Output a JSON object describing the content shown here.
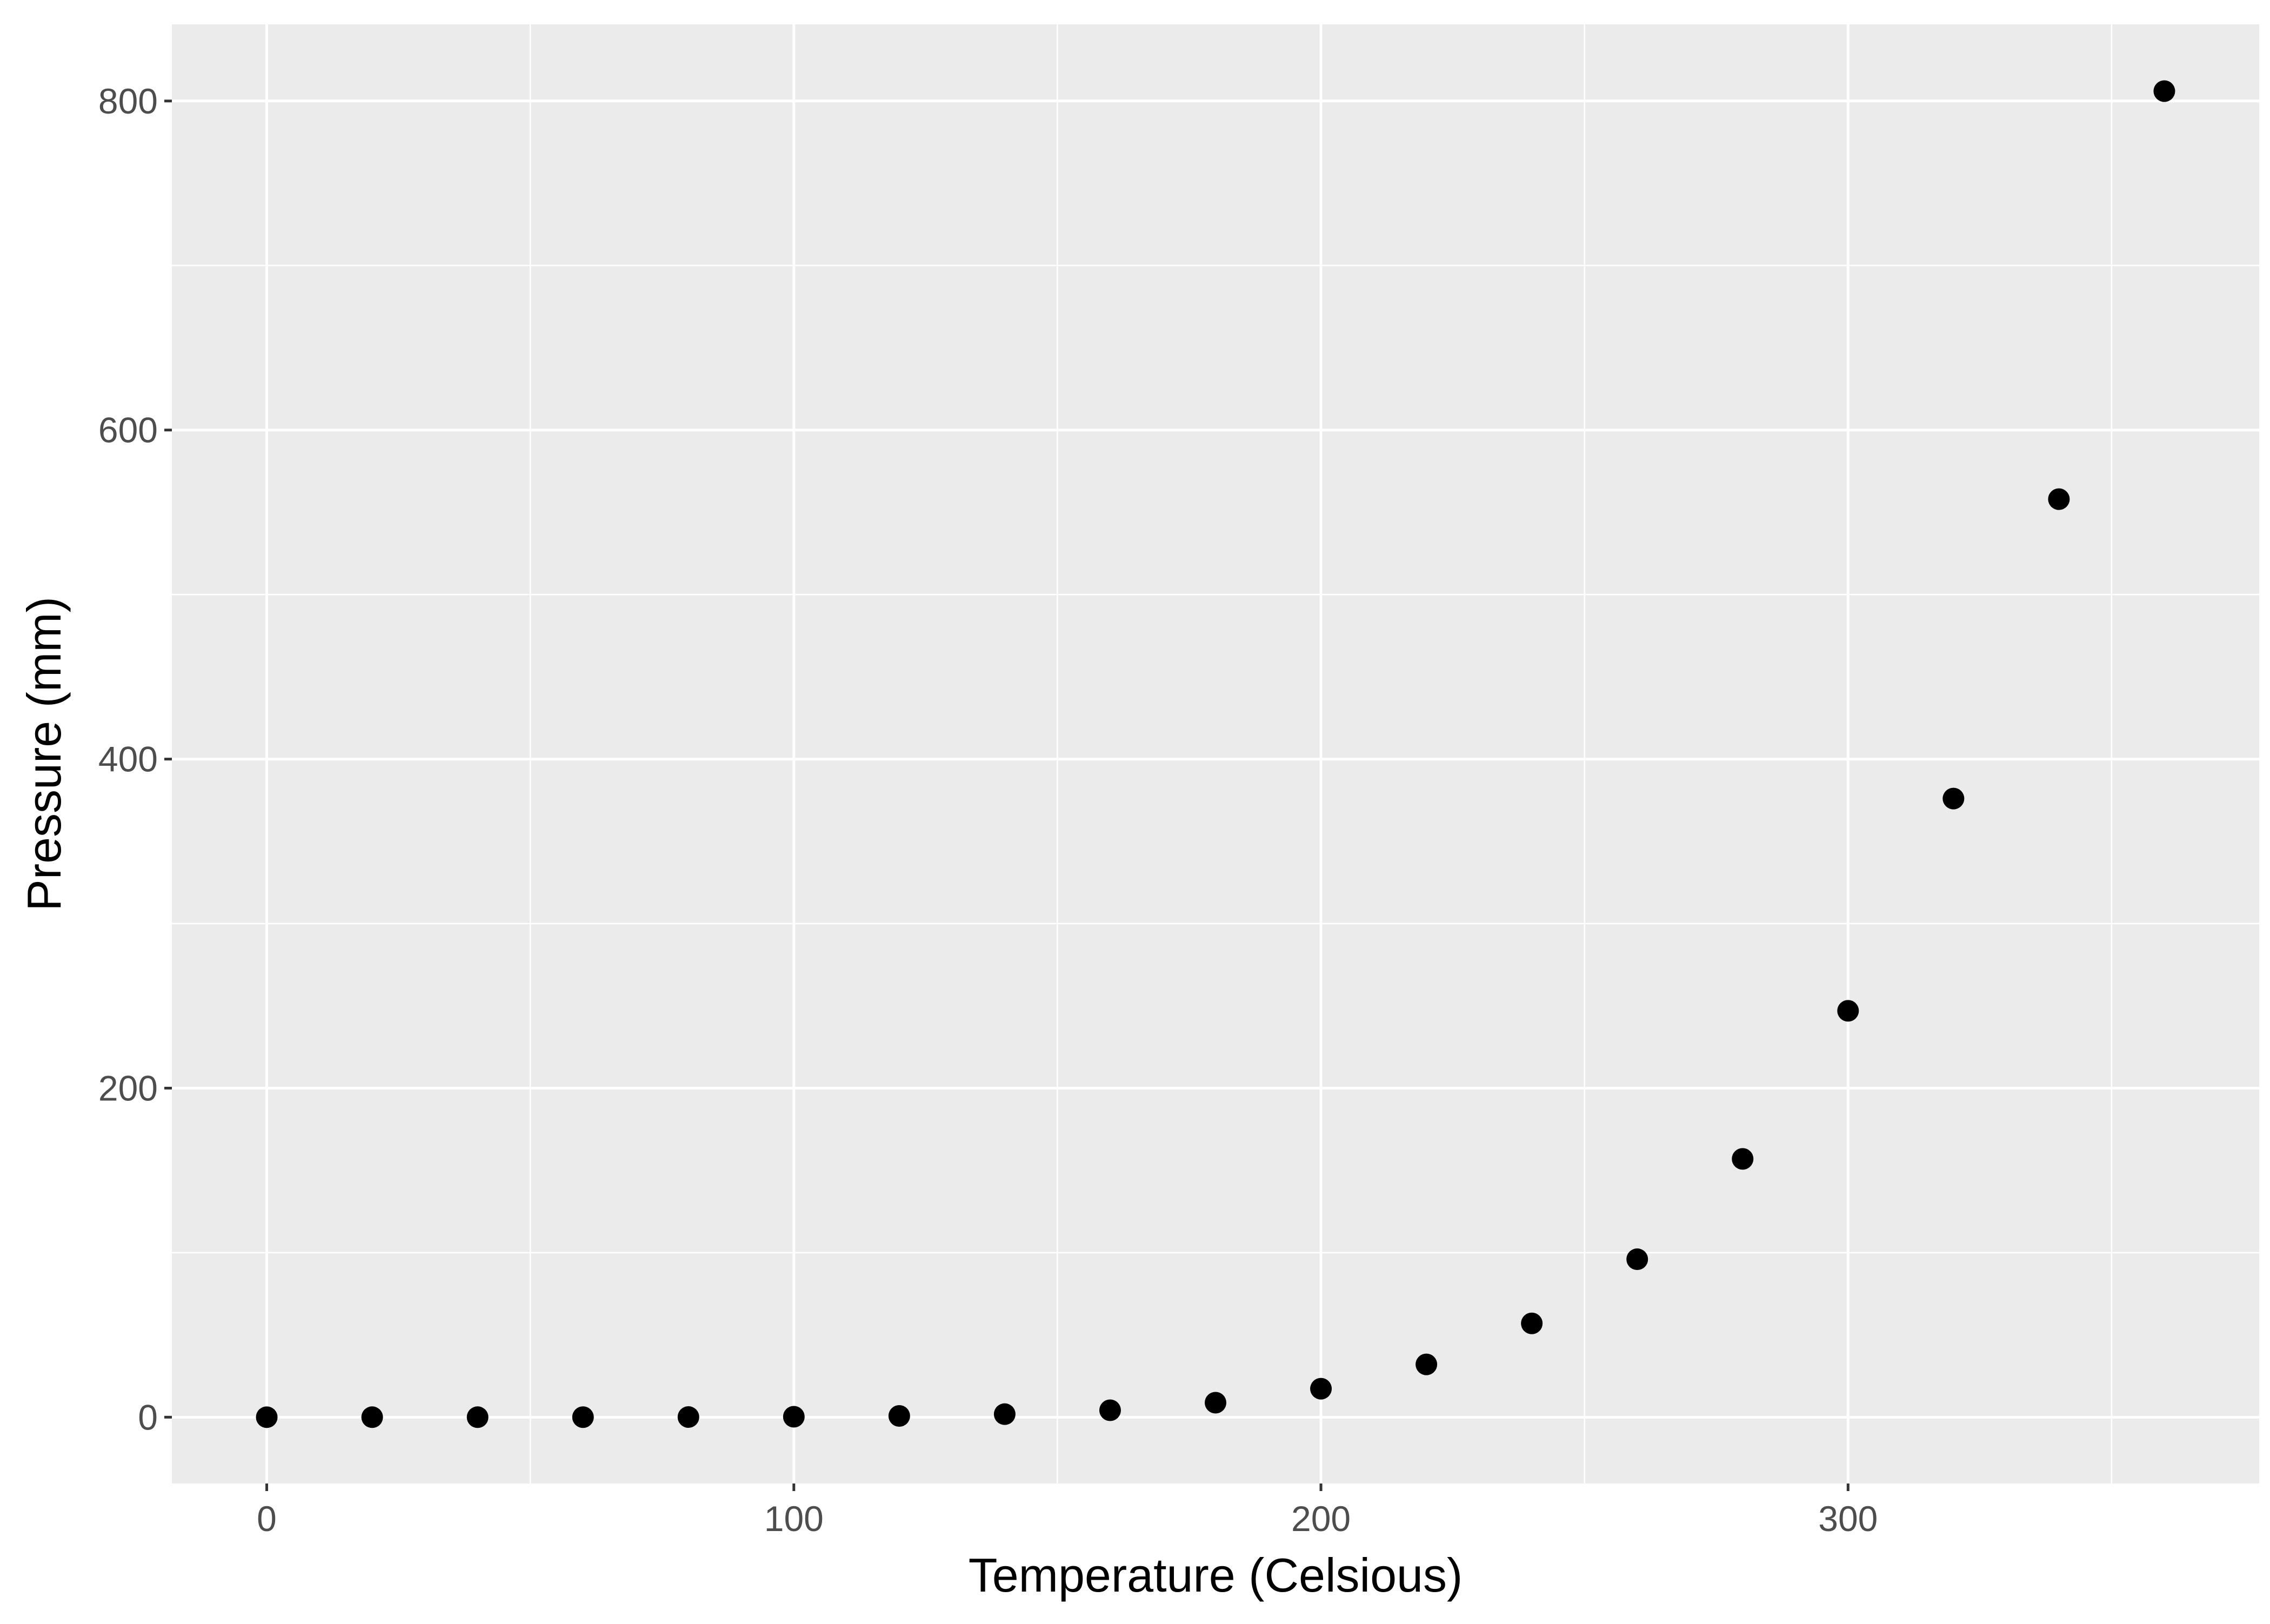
{
  "chart_data": {
    "type": "scatter",
    "title": "",
    "xlabel": "Temperature (Celsious)",
    "ylabel": "Pressure (mm)",
    "xlim": [
      -18,
      378
    ],
    "ylim": [
      -40.3,
      846.6
    ],
    "x_ticks": [
      0,
      100,
      200,
      300
    ],
    "x_tick_labels": [
      "0",
      "100",
      "200",
      "300"
    ],
    "y_ticks": [
      0,
      200,
      400,
      600,
      800
    ],
    "y_tick_labels": [
      "0",
      "200",
      "400",
      "600",
      "800"
    ],
    "x_minor_gridlines": [
      50,
      150,
      250,
      350
    ],
    "y_minor_gridlines": [
      100,
      300,
      500,
      700
    ],
    "grid": true,
    "legend": "none",
    "colors": {
      "panel_background": "#EBEBEB",
      "grid": "#FFFFFF",
      "points": "#000000",
      "tick_label": "#4D4D4D",
      "axis_title": "#000000",
      "tick_mark": "#333333"
    },
    "series": [
      {
        "x": [
          0,
          20,
          40,
          60,
          80,
          100,
          120,
          140,
          160,
          180,
          200,
          220,
          240,
          260,
          280,
          300,
          320,
          340,
          360
        ],
        "y": [
          0.0002,
          0.0012,
          0.006,
          0.03,
          0.09,
          0.27,
          0.75,
          1.85,
          4.2,
          8.8,
          17.3,
          32.1,
          57.0,
          96.0,
          157.0,
          247.0,
          376.0,
          558.0,
          806.0
        ]
      }
    ]
  }
}
